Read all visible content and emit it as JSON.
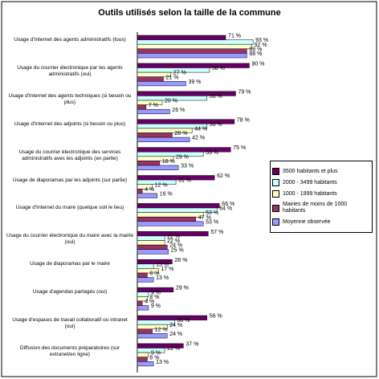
{
  "chart_data": {
    "type": "hbar",
    "title": "Outils utilisés selon la taille de la commune",
    "categories": [
      "Usage d'Internet des agents administratifs (tous)",
      "Usage du courrier électronique par les agents administratifs (oui)",
      "Usage d'Internet des agents techniques (si besoin ou plus)",
      "Usage d'Internet des adjoints (si besoin ou plus)",
      "Usage du courrier électronique des services administratifs avec les adjoints (en partie)",
      "Usage de diaporamas par les adjoints (sur partie)",
      "Usage d'Internet du maire (quelque soit le lieu)",
      "Usage du courrier électronique du maire avec la mairie (oui)",
      "Usage de diaporamas par le maire",
      "Usage d'agendas partagés (oui)",
      "Usage d'espaces de travail collaboratif ou intranet (oui)",
      "Diffusion des documents préparatoires (sur extranet/en ligne)"
    ],
    "series": [
      {
        "name": "3500 habitants et plus",
        "color": "#660066",
        "values": [
          71,
          90,
          79,
          78,
          75,
          62,
          66,
          57,
          28,
          29,
          56,
          37
        ],
        "value_labels": [
          "71 %",
          "90 %",
          "79 %",
          "78 %",
          "75 %",
          "62 %",
          "66 %",
          "57 %",
          "28 %",
          "29 %",
          "56 %",
          "37 %"
        ]
      },
      {
        "name": "2000 - 3499 habitants",
        "color": "#ccffff",
        "values": [
          93,
          58,
          56,
          56,
          53,
          31,
          64,
          22,
          13,
          9,
          30,
          22
        ],
        "value_labels": [
          "93 %",
          "58 %",
          "56 %",
          "56 %",
          "53 %",
          "31 %",
          "64 %",
          "22 %",
          "13 %",
          "9 %",
          "30 %",
          "22 %"
        ]
      },
      {
        "name": "1000 - 1999 habitants",
        "color": "#ffffcc",
        "values": [
          92,
          27,
          20,
          44,
          29,
          12,
          53,
          22,
          17,
          8,
          24,
          9
        ],
        "value_labels": [
          "92 %",
          "27 %",
          "20 %",
          "44 %",
          "29 %",
          "12 %",
          "53 %",
          "22 %",
          "17 %",
          "8 %",
          "24 %",
          "9 %"
        ]
      },
      {
        "name": "Mairies de moins de 1000 habitants",
        "color": "#993366",
        "values": [
          88,
          21,
          7,
          28,
          18,
          4,
          47,
          24,
          8,
          4,
          12,
          8
        ],
        "value_labels": [
          "88 %",
          "21 %",
          "7 %",
          "28 %",
          "18 %",
          "4 %",
          "47 %",
          "24 %",
          "8 %",
          "4 %",
          "12 %",
          "8 %"
        ]
      },
      {
        "name": "Moyenne observée",
        "color": "#9999ff",
        "values": [
          88,
          39,
          26,
          42,
          33,
          16,
          53,
          25,
          13,
          9,
          24,
          13
        ],
        "value_labels": [
          "88 %",
          "39 %",
          "26 %",
          "42 %",
          "33 %",
          "16 %",
          "53 %",
          "25 %",
          "13 %",
          "9 %",
          "24 %",
          "13 %"
        ]
      }
    ],
    "xlim": [
      0,
      100
    ]
  }
}
